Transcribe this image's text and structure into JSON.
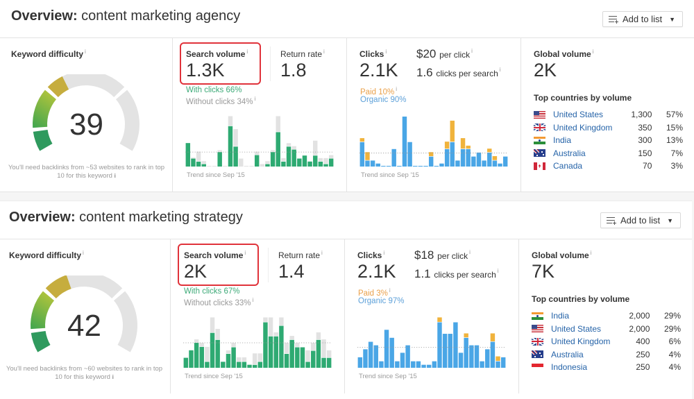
{
  "overviews": [
    {
      "title_prefix": "Overview:",
      "keyword": "content marketing agency",
      "add_to_list": "Add to list",
      "keyword_difficulty": {
        "label": "Keyword difficulty",
        "value": 39,
        "value_text": "39",
        "note": "You'll need backlinks from ~53 websites to rank in top 10 for this keyword"
      },
      "search_volume": {
        "label": "Search volume",
        "value": "1.3K",
        "with_clicks": "With clicks 66%",
        "without_clicks": "Without clicks 34%",
        "trend_label": "Trend since Sep '15"
      },
      "return_rate": {
        "label": "Return rate",
        "value": "1.8"
      },
      "clicks": {
        "label": "Clicks",
        "value": "2.1K",
        "cpc_value": "$20",
        "cpc_suffix": "per click",
        "cps_value": "1.6",
        "cps_suffix": "clicks per search",
        "paid": "Paid 10%",
        "organic": "Organic 90%",
        "trend_label": "Trend since Sep '15"
      },
      "global_volume": {
        "label": "Global volume",
        "value": "2K",
        "top_countries_label": "Top countries by volume",
        "countries": [
          {
            "name": "United States",
            "flag": "us",
            "volume": "1,300",
            "share": "57%"
          },
          {
            "name": "United Kingdom",
            "flag": "gb",
            "volume": "350",
            "share": "15%"
          },
          {
            "name": "India",
            "flag": "in",
            "volume": "300",
            "share": "13%"
          },
          {
            "name": "Australia",
            "flag": "au",
            "volume": "150",
            "share": "7%"
          },
          {
            "name": "Canada",
            "flag": "ca",
            "volume": "70",
            "share": "3%"
          }
        ]
      }
    },
    {
      "title_prefix": "Overview:",
      "keyword": "content marketing strategy",
      "add_to_list": "Add to list",
      "keyword_difficulty": {
        "label": "Keyword difficulty",
        "value": 42,
        "value_text": "42",
        "note": "You'll need backlinks from ~60 websites to rank in top 10 for this keyword"
      },
      "search_volume": {
        "label": "Search volume",
        "value": "2K",
        "with_clicks": "With clicks 67%",
        "without_clicks": "Without clicks 33%",
        "trend_label": "Trend since Sep '15"
      },
      "return_rate": {
        "label": "Return rate",
        "value": "1.4"
      },
      "clicks": {
        "label": "Clicks",
        "value": "2.1K",
        "cpc_value": "$18",
        "cpc_suffix": "per click",
        "cps_value": "1.1",
        "cps_suffix": "clicks per search",
        "paid": "Paid 3%",
        "organic": "Organic 97%",
        "trend_label": "Trend since Sep '15"
      },
      "global_volume": {
        "label": "Global volume",
        "value": "7K",
        "top_countries_label": "Top countries by volume",
        "countries": [
          {
            "name": "India",
            "flag": "in",
            "volume": "2,000",
            "share": "29%"
          },
          {
            "name": "United States",
            "flag": "us",
            "volume": "2,000",
            "share": "29%"
          },
          {
            "name": "United Kingdom",
            "flag": "gb",
            "volume": "400",
            "share": "6%"
          },
          {
            "name": "Australia",
            "flag": "au",
            "volume": "250",
            "share": "4%"
          },
          {
            "name": "Indonesia",
            "flag": "id",
            "volume": "250",
            "share": "4%"
          }
        ]
      }
    }
  ],
  "chart_data": [
    {
      "type": "bar",
      "title": "Search volume trend - content marketing agency",
      "xlabel": "Trend since Sep '15",
      "stacked": true,
      "average": 29,
      "ylim": [
        0,
        100
      ],
      "series": [
        {
          "name": "With clicks",
          "color": "#2eaa72",
          "values": [
            47,
            16,
            10,
            5,
            0,
            0,
            29,
            0,
            81,
            40,
            0,
            0,
            0,
            23,
            0,
            5,
            29,
            69,
            10,
            40,
            34,
            16,
            22,
            10,
            22,
            10,
            5,
            16
          ]
        },
        {
          "name": "Without clicks",
          "color": "#e2e2e2",
          "values": [
            0,
            1,
            19,
            5,
            1,
            1,
            3,
            1,
            19,
            34,
            16,
            1,
            1,
            6,
            5,
            5,
            3,
            31,
            6,
            6,
            6,
            0,
            0,
            0,
            29,
            6,
            11,
            6
          ]
        }
      ]
    },
    {
      "type": "bar",
      "title": "Clicks trend - content marketing agency",
      "xlabel": "Trend since Sep '15",
      "stacked": true,
      "average": 27,
      "ylim": [
        0,
        100
      ],
      "series": [
        {
          "name": "Organic",
          "color": "#4aa6e6",
          "values": [
            49,
            12,
            12,
            6,
            1,
            1,
            35,
            1,
            100,
            49,
            1,
            1,
            1,
            20,
            1,
            6,
            35,
            49,
            12,
            35,
            35,
            20,
            28,
            12,
            28,
            12,
            6,
            20
          ]
        },
        {
          "name": "Paid",
          "color": "#f0b33c",
          "values": [
            7,
            16,
            0,
            0,
            0,
            0,
            0,
            0,
            0,
            0,
            0,
            0,
            0,
            8,
            0,
            0,
            14,
            42,
            0,
            21,
            6,
            0,
            0,
            0,
            7,
            8,
            0,
            0
          ]
        }
      ]
    },
    {
      "type": "bar",
      "title": "Search volume trend - content marketing strategy",
      "xlabel": "Trend since Sep '15",
      "stacked": true,
      "average": 50,
      "ylim": [
        0,
        100
      ],
      "series": [
        {
          "name": "With clicks",
          "color": "#2eaa72",
          "values": [
            20,
            35,
            50,
            42,
            12,
            70,
            56,
            12,
            28,
            41,
            12,
            12,
            6,
            6,
            12,
            91,
            63,
            63,
            84,
            28,
            56,
            41,
            41,
            12,
            34,
            56,
            20,
            20
          ]
        },
        {
          "name": "Without clicks",
          "color": "#e2e2e2",
          "values": [
            0,
            0,
            6,
            7,
            29,
            30,
            21,
            0,
            6,
            8,
            8,
            8,
            0,
            22,
            16,
            9,
            37,
            7,
            16,
            21,
            7,
            8,
            0,
            22,
            15,
            14,
            36,
            14
          ]
        }
      ]
    },
    {
      "type": "bar",
      "title": "Clicks trend - content marketing strategy",
      "xlabel": "Trend since Sep '15",
      "stacked": true,
      "average": 41,
      "ylim": [
        0,
        100
      ],
      "series": [
        {
          "name": "Organic",
          "color": "#4aa6e6",
          "values": [
            21,
            37,
            52,
            45,
            13,
            76,
            60,
            13,
            30,
            45,
            13,
            13,
            6,
            6,
            13,
            91,
            68,
            68,
            91,
            30,
            60,
            45,
            45,
            13,
            37,
            52,
            13,
            21
          ]
        },
        {
          "name": "Paid",
          "color": "#f0b33c",
          "values": [
            0,
            0,
            0,
            0,
            0,
            0,
            0,
            0,
            0,
            0,
            0,
            0,
            0,
            0,
            0,
            9,
            0,
            0,
            0,
            0,
            8,
            0,
            0,
            0,
            0,
            16,
            9,
            0
          ]
        }
      ]
    }
  ]
}
